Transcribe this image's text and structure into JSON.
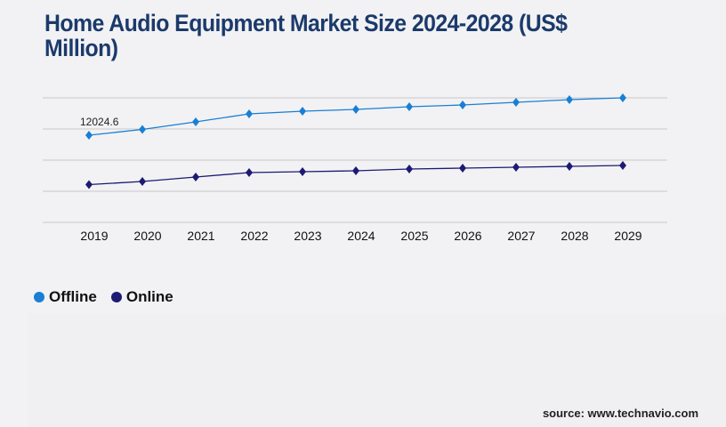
{
  "title": "Home Audio Equipment Market Size 2024-2028 (US$ Million)",
  "source": "source: www.technavio.com",
  "colors": {
    "offline": "#1a7fd4",
    "online": "#1c1a73",
    "title": "#1b3a6b",
    "grid": "#c8c8cc"
  },
  "chart_data": {
    "type": "line",
    "title": "Home Audio Equipment Market Size 2024-2028 (US$ Million)",
    "categories": [
      "2019",
      "2020",
      "2021",
      "2022",
      "2023",
      "2024",
      "2025",
      "2026",
      "2027",
      "2028",
      "2029"
    ],
    "series": [
      {
        "name": "Offline",
        "values": [
          12024.6,
          12822,
          13865,
          14969,
          15337,
          15583,
          15951,
          16196,
          16564,
          16932,
          17178
        ]
      },
      {
        "name": "Online",
        "values": [
          5215,
          5644,
          6258,
          6871,
          6994,
          7117,
          7362,
          7485,
          7608,
          7731,
          7853
        ]
      }
    ],
    "annotations": [
      {
        "series": "Offline",
        "category": "2019",
        "label": "12024.6"
      }
    ],
    "ylim": [
      0,
      17180
    ],
    "grid": true,
    "legend": "bottom-left",
    "marker": "diamond"
  }
}
